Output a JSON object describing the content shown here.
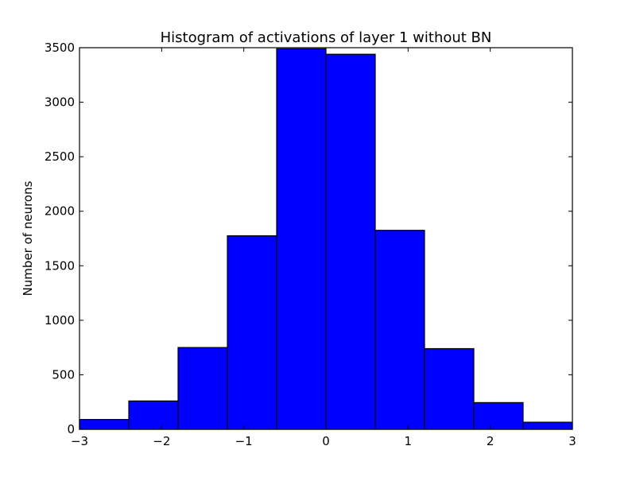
{
  "chart_data": {
    "type": "bar",
    "title": "Histogram of activations of layer 1  without BN",
    "xlabel": "",
    "ylabel": "Number of neurons",
    "xlim": [
      -3,
      3
    ],
    "ylim": [
      0,
      3500
    ],
    "bin_edges": [
      -3,
      -2.4,
      -1.8,
      -1.2,
      -0.6,
      0,
      0.6,
      1.2,
      1.8,
      2.4,
      3
    ],
    "values": [
      90,
      260,
      750,
      1775,
      3490,
      3440,
      1825,
      740,
      245,
      65
    ],
    "x_ticks": [
      -3,
      -2,
      -1,
      0,
      1,
      2,
      3
    ],
    "x_tick_labels": [
      "−3",
      "−2",
      "−1",
      "0",
      "1",
      "2",
      "3"
    ],
    "y_ticks": [
      0,
      500,
      1000,
      1500,
      2000,
      2500,
      3000,
      3500
    ],
    "y_tick_labels": [
      "0",
      "500",
      "1000",
      "1500",
      "2000",
      "2500",
      "3000",
      "3500"
    ],
    "grid": false,
    "bar_color": "#0000ff",
    "edge_color": "#000000"
  }
}
